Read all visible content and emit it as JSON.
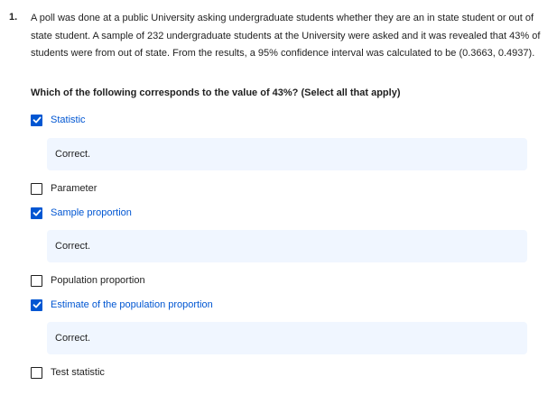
{
  "question": {
    "number": "1.",
    "text": "A poll was done at a public University asking undergraduate students whether they are an in state student or out of state student. A sample of 232 undergraduate students at the University were asked and it was revealed that 43% of students were from out of state. From the results, a 95% confidence interval was calculated to be (0.3663, 0.4937).",
    "prompt": "Which of the following corresponds to the value of 43%? (Select all that apply)"
  },
  "options": [
    {
      "label": "Statistic",
      "checked": true,
      "feedback": "Correct."
    },
    {
      "label": "Parameter",
      "checked": false
    },
    {
      "label": "Sample proportion",
      "checked": true,
      "feedback": "Correct."
    },
    {
      "label": "Population proportion",
      "checked": false
    },
    {
      "label": "Estimate of the population proportion",
      "checked": true,
      "feedback": "Correct."
    },
    {
      "label": "Test statistic",
      "checked": false
    }
  ],
  "colors": {
    "accent": "#0056d2",
    "feedback_bg": "#f0f6ff",
    "text": "#1f1f1f"
  }
}
